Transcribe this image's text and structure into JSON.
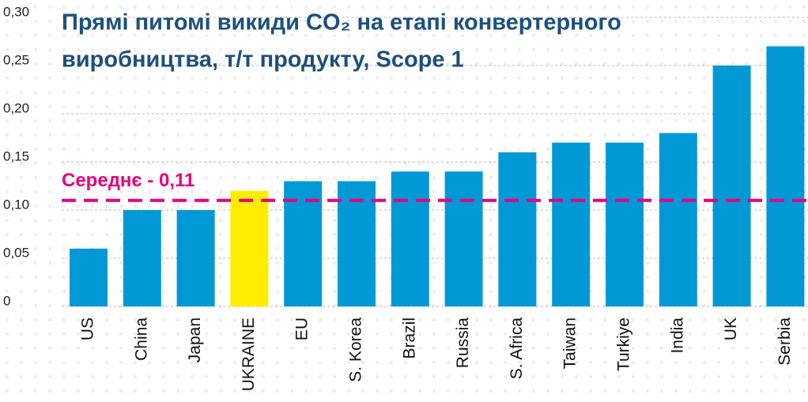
{
  "chart_data": {
    "type": "bar",
    "title": [
      "Прямі питомі викиди CO₂ на етапі конвертерного",
      "виробництва, т/т продукту, Scope 1"
    ],
    "categories": [
      "US",
      "China",
      "Japan",
      "UKRAINE",
      "EU",
      "S. Korea",
      "Brazil",
      "Russia",
      "S. Africa",
      "Taiwan",
      "Turkiye",
      "India",
      "UK",
      "Serbia"
    ],
    "values": [
      0.06,
      0.1,
      0.1,
      0.12,
      0.13,
      0.13,
      0.14,
      0.14,
      0.16,
      0.17,
      0.17,
      0.18,
      0.25,
      0.27
    ],
    "colors": [
      "#0099d5",
      "#0099d5",
      "#0099d5",
      "#ffed00",
      "#0099d5",
      "#0099d5",
      "#0099d5",
      "#0099d5",
      "#0099d5",
      "#0099d5",
      "#0099d5",
      "#0099d5",
      "#0099d5",
      "#0099d5"
    ],
    "ylim": [
      0,
      0.3
    ],
    "yticks": [
      {
        "value": 0,
        "label": "0"
      },
      {
        "value": 0.05,
        "label": "0,05"
      },
      {
        "value": 0.1,
        "label": "0,10"
      },
      {
        "value": 0.15,
        "label": "0,15"
      },
      {
        "value": 0.2,
        "label": "0,20"
      },
      {
        "value": 0.25,
        "label": "0,25"
      },
      {
        "value": 0.3,
        "label": "0,30"
      }
    ],
    "grid": true,
    "mean": {
      "value": 0.11,
      "label": "Середнє - 0,11",
      "color": "#e5007e"
    }
  }
}
